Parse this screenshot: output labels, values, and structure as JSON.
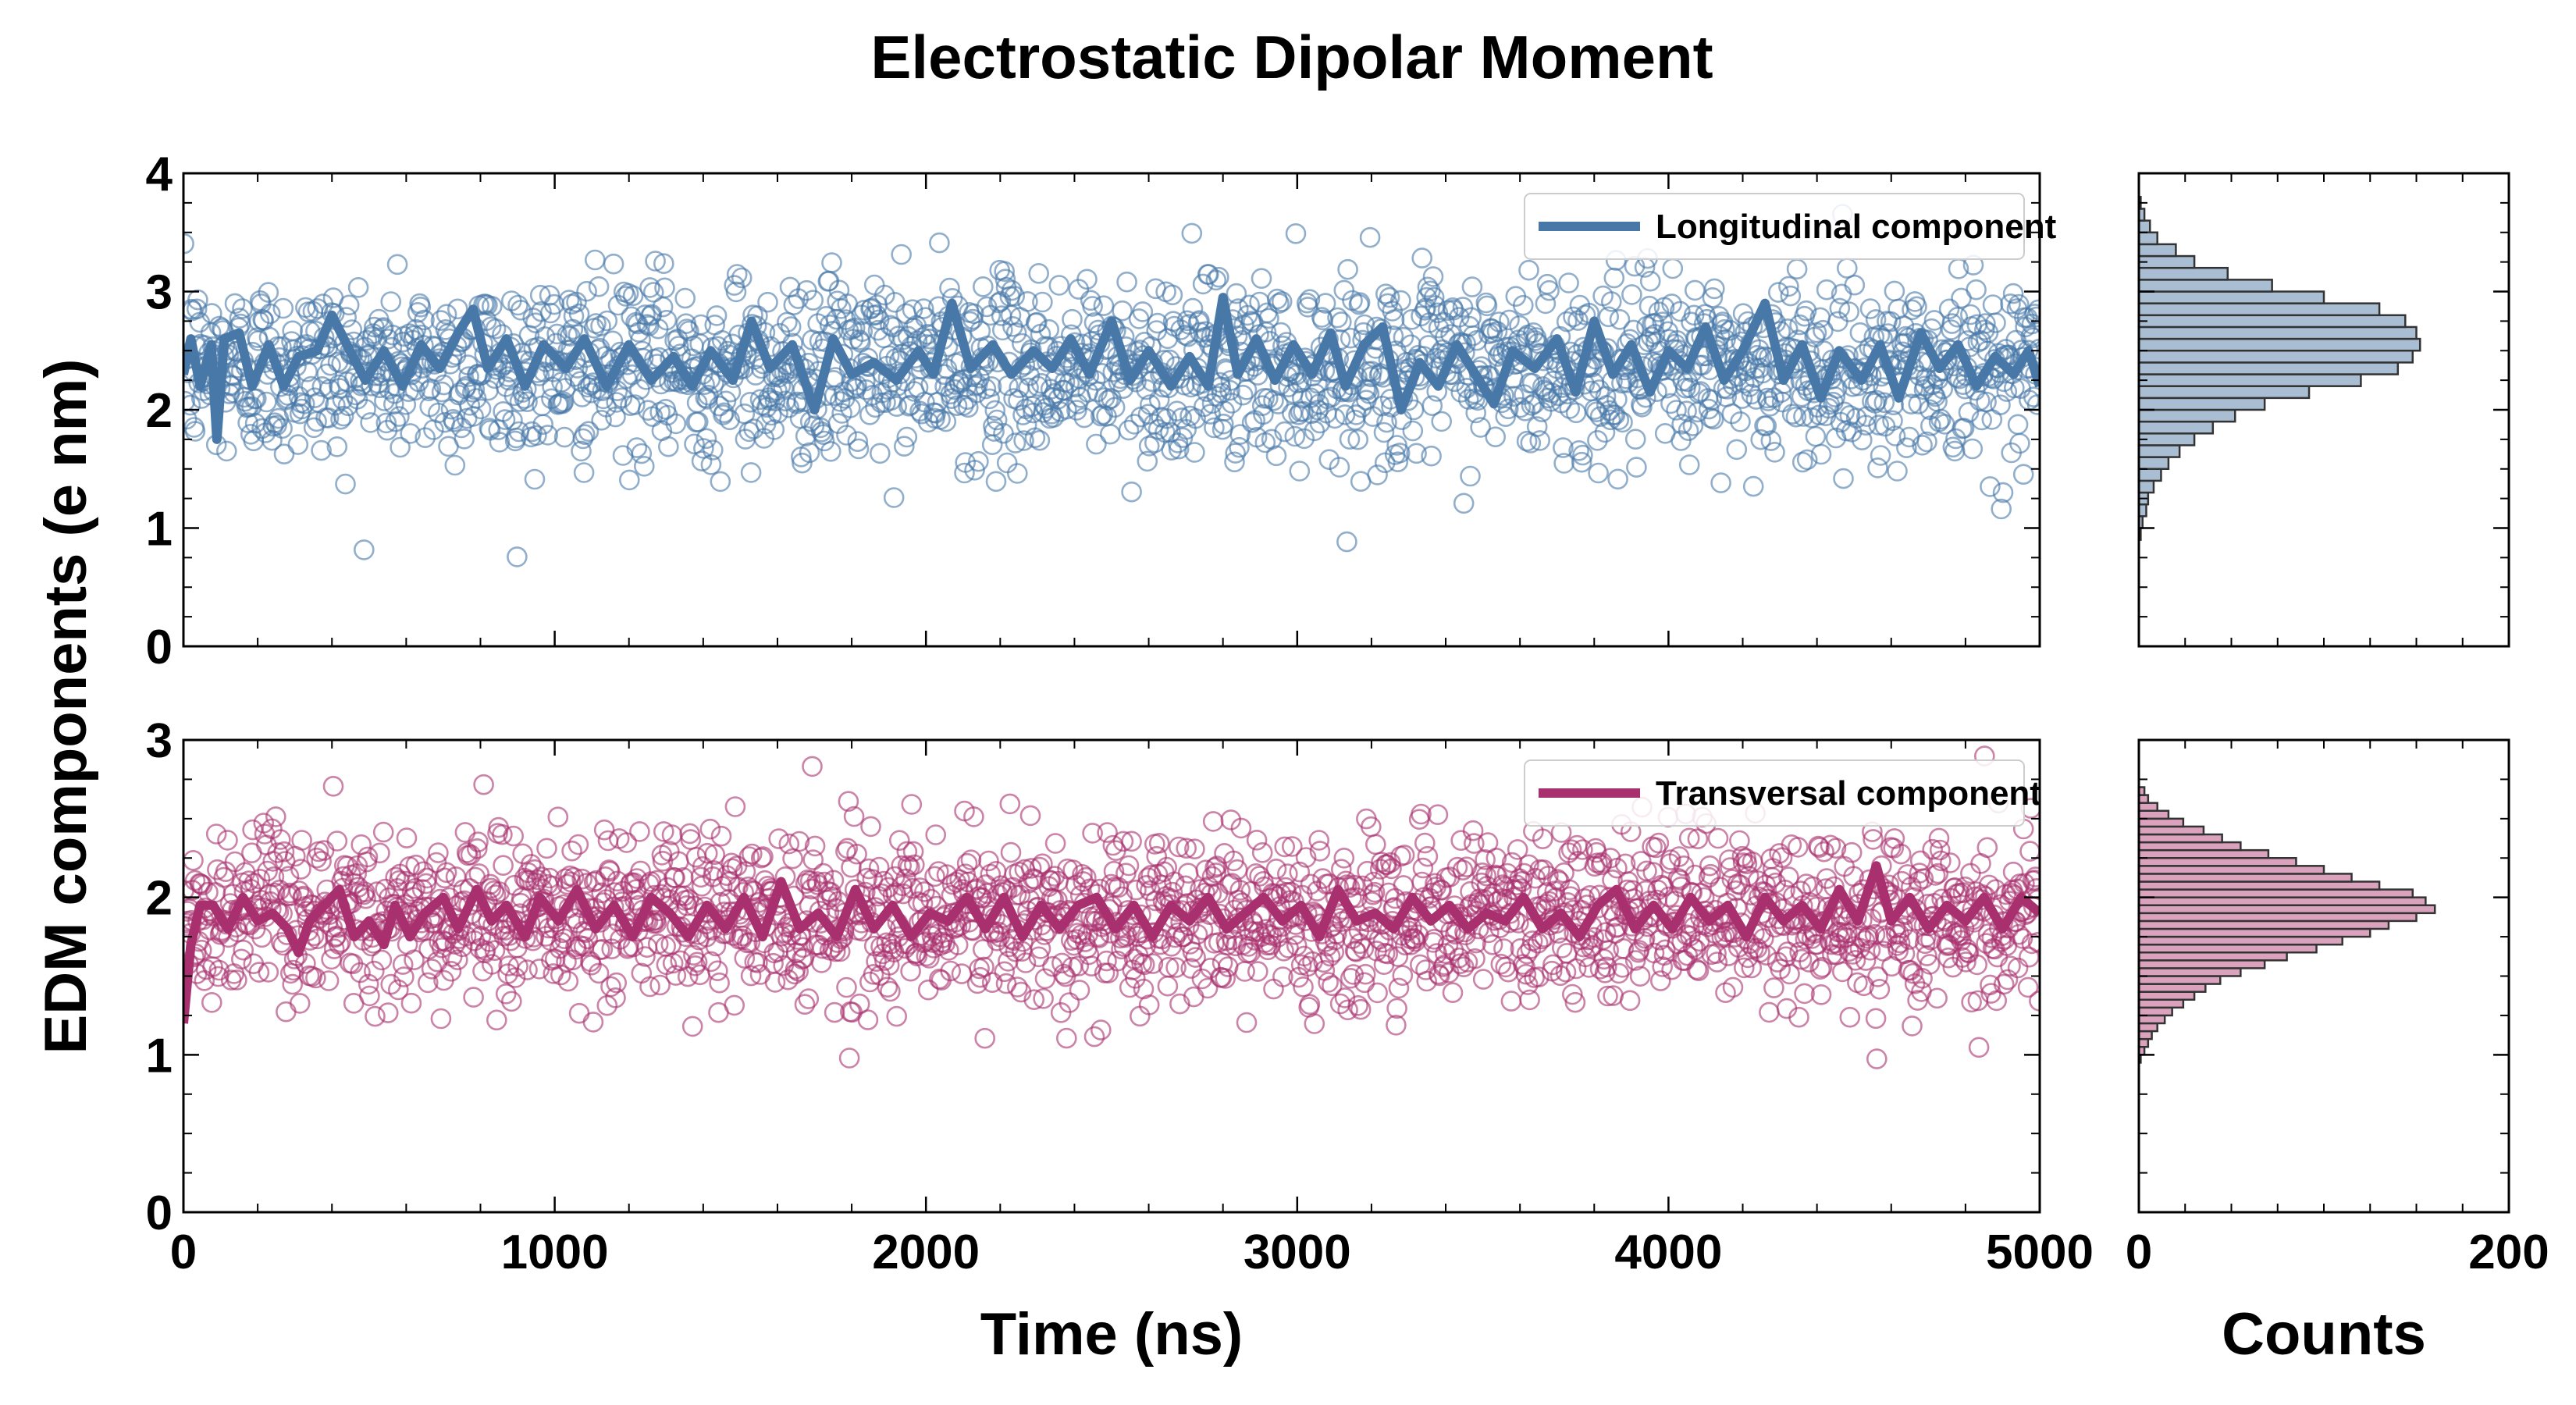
{
  "chart_data": {
    "type": "scatter",
    "title": "Electrostatic Dipolar Moment",
    "shared_ylabel": "EDM components (e nm)",
    "panels": [
      {
        "id": "longitudinal",
        "type": "scatter",
        "legend_label": "Longitudinal component",
        "legend_position": "top-right",
        "color": "#4878a8",
        "xlim": [
          0,
          5000
        ],
        "ylim": [
          0,
          4
        ],
        "yticks": [
          0,
          1,
          2,
          3,
          4
        ],
        "mean": 2.35,
        "spread": 0.38,
        "n_points": 2000,
        "running_mean": [
          [
            0,
            2.3
          ],
          [
            20,
            2.6
          ],
          [
            45,
            2.2
          ],
          [
            75,
            2.55
          ],
          [
            90,
            1.75
          ],
          [
            110,
            2.6
          ],
          [
            150,
            2.65
          ],
          [
            185,
            2.2
          ],
          [
            230,
            2.55
          ],
          [
            270,
            2.2
          ],
          [
            310,
            2.45
          ],
          [
            360,
            2.5
          ],
          [
            400,
            2.8
          ],
          [
            440,
            2.55
          ],
          [
            490,
            2.25
          ],
          [
            540,
            2.5
          ],
          [
            590,
            2.2
          ],
          [
            640,
            2.55
          ],
          [
            690,
            2.35
          ],
          [
            740,
            2.65
          ],
          [
            780,
            2.85
          ],
          [
            820,
            2.35
          ],
          [
            870,
            2.6
          ],
          [
            920,
            2.2
          ],
          [
            970,
            2.55
          ],
          [
            1030,
            2.35
          ],
          [
            1080,
            2.6
          ],
          [
            1140,
            2.2
          ],
          [
            1200,
            2.55
          ],
          [
            1260,
            2.25
          ],
          [
            1320,
            2.45
          ],
          [
            1370,
            2.2
          ],
          [
            1420,
            2.5
          ],
          [
            1480,
            2.25
          ],
          [
            1530,
            2.75
          ],
          [
            1580,
            2.35
          ],
          [
            1640,
            2.55
          ],
          [
            1700,
            2.0
          ],
          [
            1750,
            2.6
          ],
          [
            1800,
            2.3
          ],
          [
            1860,
            2.4
          ],
          [
            1920,
            2.25
          ],
          [
            1980,
            2.5
          ],
          [
            2020,
            2.3
          ],
          [
            2070,
            2.9
          ],
          [
            2120,
            2.35
          ],
          [
            2180,
            2.55
          ],
          [
            2230,
            2.3
          ],
          [
            2290,
            2.5
          ],
          [
            2340,
            2.35
          ],
          [
            2390,
            2.6
          ],
          [
            2440,
            2.3
          ],
          [
            2500,
            2.75
          ],
          [
            2550,
            2.25
          ],
          [
            2600,
            2.5
          ],
          [
            2660,
            2.2
          ],
          [
            2710,
            2.45
          ],
          [
            2760,
            2.2
          ],
          [
            2800,
            2.95
          ],
          [
            2840,
            2.3
          ],
          [
            2890,
            2.6
          ],
          [
            2940,
            2.25
          ],
          [
            2990,
            2.55
          ],
          [
            3040,
            2.3
          ],
          [
            3090,
            2.65
          ],
          [
            3130,
            2.2
          ],
          [
            3180,
            2.55
          ],
          [
            3230,
            2.7
          ],
          [
            3280,
            2.0
          ],
          [
            3330,
            2.4
          ],
          [
            3380,
            2.2
          ],
          [
            3430,
            2.55
          ],
          [
            3480,
            2.3
          ],
          [
            3530,
            2.05
          ],
          [
            3580,
            2.5
          ],
          [
            3640,
            2.35
          ],
          [
            3700,
            2.6
          ],
          [
            3750,
            2.15
          ],
          [
            3800,
            2.75
          ],
          [
            3850,
            2.3
          ],
          [
            3900,
            2.55
          ],
          [
            3950,
            2.15
          ],
          [
            4000,
            2.5
          ],
          [
            4050,
            2.35
          ],
          [
            4100,
            2.7
          ],
          [
            4150,
            2.25
          ],
          [
            4200,
            2.5
          ],
          [
            4260,
            2.9
          ],
          [
            4310,
            2.25
          ],
          [
            4360,
            2.55
          ],
          [
            4410,
            2.1
          ],
          [
            4460,
            2.5
          ],
          [
            4520,
            2.25
          ],
          [
            4570,
            2.55
          ],
          [
            4620,
            2.1
          ],
          [
            4680,
            2.65
          ],
          [
            4730,
            2.35
          ],
          [
            4780,
            2.55
          ],
          [
            4830,
            2.2
          ],
          [
            4880,
            2.45
          ],
          [
            4930,
            2.3
          ],
          [
            4970,
            2.5
          ],
          [
            5000,
            2.2
          ]
        ],
        "histogram": {
          "bin_width": 0.1,
          "bins": [
            [
              0.9,
              1
            ],
            [
              1.0,
              2
            ],
            [
              1.1,
              4
            ],
            [
              1.2,
              5
            ],
            [
              1.3,
              8
            ],
            [
              1.4,
              12
            ],
            [
              1.5,
              16
            ],
            [
              1.6,
              22
            ],
            [
              1.7,
              30
            ],
            [
              1.8,
              40
            ],
            [
              1.9,
              52
            ],
            [
              2.0,
              68
            ],
            [
              2.1,
              92
            ],
            [
              2.2,
              120
            ],
            [
              2.3,
              140
            ],
            [
              2.4,
              148
            ],
            [
              2.5,
              152
            ],
            [
              2.6,
              150
            ],
            [
              2.7,
              144
            ],
            [
              2.8,
              130
            ],
            [
              2.9,
              100
            ],
            [
              3.0,
              72
            ],
            [
              3.1,
              48
            ],
            [
              3.2,
              30
            ],
            [
              3.3,
              20
            ],
            [
              3.4,
              10
            ],
            [
              3.5,
              6
            ],
            [
              3.6,
              3
            ],
            [
              3.7,
              1
            ]
          ]
        }
      },
      {
        "id": "transversal",
        "type": "scatter",
        "legend_label": "Transversal component",
        "legend_position": "top-right",
        "color": "#a8306e",
        "xlim": [
          0,
          5000
        ],
        "ylim": [
          0,
          3
        ],
        "yticks": [
          0,
          1,
          2,
          3
        ],
        "mean": 1.88,
        "spread": 0.27,
        "n_points": 2000,
        "running_mean": [
          [
            0,
            1.2
          ],
          [
            20,
            1.7
          ],
          [
            45,
            1.95
          ],
          [
            80,
            1.95
          ],
          [
            120,
            1.8
          ],
          [
            160,
            2.0
          ],
          [
            200,
            1.85
          ],
          [
            240,
            1.9
          ],
          [
            280,
            1.8
          ],
          [
            310,
            1.65
          ],
          [
            340,
            1.85
          ],
          [
            380,
            1.95
          ],
          [
            420,
            2.05
          ],
          [
            460,
            1.75
          ],
          [
            500,
            1.85
          ],
          [
            540,
            1.7
          ],
          [
            570,
            1.95
          ],
          [
            610,
            1.75
          ],
          [
            650,
            1.9
          ],
          [
            700,
            2.0
          ],
          [
            740,
            1.8
          ],
          [
            790,
            2.05
          ],
          [
            830,
            1.85
          ],
          [
            870,
            1.95
          ],
          [
            920,
            1.75
          ],
          [
            960,
            2.0
          ],
          [
            1010,
            1.85
          ],
          [
            1060,
            2.05
          ],
          [
            1110,
            1.8
          ],
          [
            1160,
            1.95
          ],
          [
            1210,
            1.75
          ],
          [
            1260,
            2.0
          ],
          [
            1310,
            1.9
          ],
          [
            1360,
            1.75
          ],
          [
            1410,
            1.95
          ],
          [
            1460,
            1.8
          ],
          [
            1510,
            2.0
          ],
          [
            1560,
            1.75
          ],
          [
            1610,
            2.1
          ],
          [
            1660,
            1.8
          ],
          [
            1710,
            1.9
          ],
          [
            1760,
            1.75
          ],
          [
            1810,
            2.05
          ],
          [
            1860,
            1.8
          ],
          [
            1910,
            1.95
          ],
          [
            1960,
            1.75
          ],
          [
            2010,
            1.9
          ],
          [
            2060,
            1.85
          ],
          [
            2110,
            2.0
          ],
          [
            2160,
            1.8
          ],
          [
            2210,
            2.0
          ],
          [
            2260,
            1.75
          ],
          [
            2310,
            1.95
          ],
          [
            2360,
            1.8
          ],
          [
            2410,
            1.95
          ],
          [
            2460,
            2.0
          ],
          [
            2510,
            1.8
          ],
          [
            2560,
            1.95
          ],
          [
            2610,
            1.75
          ],
          [
            2660,
            1.95
          ],
          [
            2710,
            1.85
          ],
          [
            2760,
            2.0
          ],
          [
            2810,
            1.8
          ],
          [
            2860,
            1.9
          ],
          [
            2910,
            2.0
          ],
          [
            2960,
            1.85
          ],
          [
            3010,
            1.95
          ],
          [
            3060,
            1.75
          ],
          [
            3110,
            2.05
          ],
          [
            3160,
            1.85
          ],
          [
            3210,
            1.9
          ],
          [
            3260,
            1.8
          ],
          [
            3310,
            2.0
          ],
          [
            3360,
            1.85
          ],
          [
            3410,
            1.95
          ],
          [
            3460,
            1.8
          ],
          [
            3510,
            1.9
          ],
          [
            3560,
            1.85
          ],
          [
            3610,
            2.0
          ],
          [
            3660,
            1.8
          ],
          [
            3710,
            1.9
          ],
          [
            3760,
            1.75
          ],
          [
            3810,
            1.95
          ],
          [
            3860,
            2.05
          ],
          [
            3910,
            1.8
          ],
          [
            3960,
            1.95
          ],
          [
            4010,
            1.8
          ],
          [
            4060,
            2.0
          ],
          [
            4110,
            1.85
          ],
          [
            4160,
            1.95
          ],
          [
            4210,
            1.75
          ],
          [
            4260,
            2.0
          ],
          [
            4310,
            1.85
          ],
          [
            4360,
            1.95
          ],
          [
            4410,
            1.8
          ],
          [
            4460,
            2.05
          ],
          [
            4510,
            1.85
          ],
          [
            4560,
            2.2
          ],
          [
            4600,
            1.85
          ],
          [
            4650,
            2.0
          ],
          [
            4700,
            1.8
          ],
          [
            4750,
            1.95
          ],
          [
            4800,
            1.85
          ],
          [
            4850,
            2.0
          ],
          [
            4900,
            1.8
          ],
          [
            4950,
            2.0
          ],
          [
            5000,
            1.9
          ]
        ],
        "histogram": {
          "bin_width": 0.05,
          "bins": [
            [
              0.95,
              1
            ],
            [
              1.0,
              3
            ],
            [
              1.05,
              5
            ],
            [
              1.1,
              7
            ],
            [
              1.15,
              10
            ],
            [
              1.2,
              14
            ],
            [
              1.25,
              18
            ],
            [
              1.3,
              24
            ],
            [
              1.35,
              30
            ],
            [
              1.4,
              36
            ],
            [
              1.45,
              44
            ],
            [
              1.5,
              55
            ],
            [
              1.55,
              68
            ],
            [
              1.6,
              80
            ],
            [
              1.65,
              96
            ],
            [
              1.7,
              110
            ],
            [
              1.75,
              125
            ],
            [
              1.8,
              135
            ],
            [
              1.85,
              150
            ],
            [
              1.9,
              160
            ],
            [
              1.95,
              155
            ],
            [
              2.0,
              148
            ],
            [
              2.05,
              130
            ],
            [
              2.1,
              115
            ],
            [
              2.15,
              100
            ],
            [
              2.2,
              85
            ],
            [
              2.25,
              70
            ],
            [
              2.3,
              55
            ],
            [
              2.35,
              45
            ],
            [
              2.4,
              35
            ],
            [
              2.45,
              24
            ],
            [
              2.5,
              16
            ],
            [
              2.55,
              10
            ],
            [
              2.6,
              5
            ],
            [
              2.65,
              3
            ]
          ]
        }
      }
    ],
    "x_axis": {
      "label": "Time (ns)",
      "ticks": [
        0,
        1000,
        2000,
        3000,
        4000,
        5000
      ]
    },
    "hist_axis": {
      "label": "Counts",
      "xlim": [
        0,
        200
      ],
      "ticks": [
        0,
        200
      ],
      "bar_color": "#aab9c9"
    },
    "hist_colors": {
      "longitudinal": "#a9bed3",
      "transversal": "#dba2bd"
    }
  }
}
